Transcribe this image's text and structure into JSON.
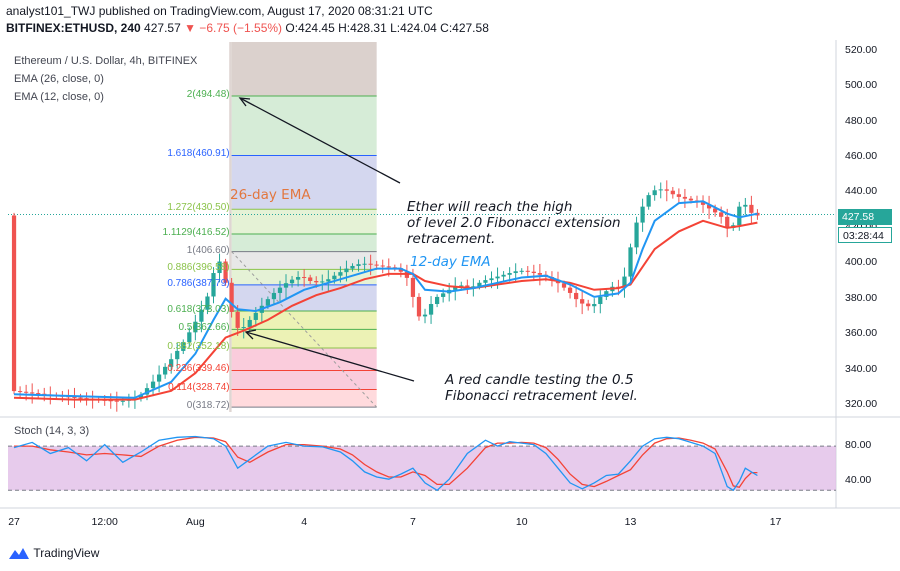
{
  "header": {
    "line1": "analyst101_TWJ published on TradingView.com, August 17, 2020 08:31:21 UTC",
    "symbol": "BITFINEX:ETHUSD, 240",
    "last": "427.57",
    "change": "▼ −6.75 (−1.55%)",
    "ohlc": "O:424.45 H:428.31 L:424.04 C:427.58"
  },
  "legend": {
    "title": "Ethereum / U.S. Dollar, 4h, BITFINEX",
    "ema26": "EMA (26, close, 0)",
    "ema12": "EMA (12, close, 0)",
    "stoch": "Stoch (14, 3, 3)"
  },
  "annotations": {
    "ema26_label": "26-day EMA",
    "ema12_label": "12-day EMA",
    "top_note": [
      "Ether will reach the high",
      "of level 2.0 Fibonacci extension",
      "retracement."
    ],
    "bottom_note": [
      "A red candle testing the 0.5",
      "Fibonacci retracement level."
    ]
  },
  "price_tags": {
    "last_price": "427.58",
    "countdown": "03:28:44"
  },
  "colors": {
    "up": "#26a69a",
    "down": "#ef5350",
    "ema12": "#2196f3",
    "ema26": "#f44336",
    "stoch_k": "#2196f3",
    "stoch_d": "#f44336",
    "stoch_band": "#e1bee7"
  },
  "footer": {
    "brand": "TradingView"
  },
  "chart_data": {
    "type": "candlestick",
    "y_ticks": [
      "520.00",
      "500.00",
      "480.00",
      "460.00",
      "440.00",
      "420.00",
      "400.00",
      "380.00",
      "360.00",
      "340.00",
      "320.00"
    ],
    "ylim": [
      316,
      525
    ],
    "x_ticks": [
      {
        "label": "27",
        "x": 0
      },
      {
        "label": "12:00",
        "x": 15
      },
      {
        "label": "Aug",
        "x": 30
      },
      {
        "label": "4",
        "x": 48
      },
      {
        "label": "7",
        "x": 66
      },
      {
        "label": "10",
        "x": 84
      },
      {
        "label": "13",
        "x": 102
      },
      {
        "label": "17",
        "x": 126
      }
    ],
    "xlim": [
      -1,
      136
    ],
    "fib_levels": [
      {
        "label": "2(494.48)",
        "value": 494.48,
        "color": "#4caf50"
      },
      {
        "label": "1.618(460.91)",
        "value": 460.91,
        "color": "#2962ff"
      },
      {
        "label": "1.272(430.50)",
        "value": 430.5,
        "color": "#8bc34a"
      },
      {
        "label": "1.1129(416.52)",
        "value": 416.52,
        "color": "#4caf50"
      },
      {
        "label": "1(406.60)",
        "value": 406.6,
        "color": "#787b86"
      },
      {
        "label": "0.886(396.58)",
        "value": 396.58,
        "color": "#8bc34a"
      },
      {
        "label": "0.786(387.79)",
        "value": 387.79,
        "color": "#2962ff"
      },
      {
        "label": "0.618(373.03)",
        "value": 373.03,
        "color": "#4caf50"
      },
      {
        "label": "0.5(362.66)",
        "value": 362.66,
        "color": "#4caf50"
      },
      {
        "label": "0.382(352.18)",
        "value": 352.18,
        "color": "#8bc34a"
      },
      {
        "label": "0.236(339.46)",
        "value": 339.46,
        "color": "#f44336"
      },
      {
        "label": "0.114(328.74)",
        "value": 328.74,
        "color": "#f44336"
      },
      {
        "label": "0(318.72)",
        "value": 318.72,
        "color": "#787b86"
      }
    ],
    "fib_x_range": [
      36,
      60
    ],
    "last_price": 427.58,
    "price_path": [
      [
        0,
        328
      ],
      [
        8,
        325
      ],
      [
        14,
        323
      ],
      [
        18,
        322
      ],
      [
        21,
        324
      ],
      [
        24,
        335
      ],
      [
        27,
        348
      ],
      [
        29,
        358
      ],
      [
        31,
        370
      ],
      [
        33,
        385
      ],
      [
        34,
        404
      ],
      [
        35,
        398
      ],
      [
        36,
        380
      ],
      [
        37,
        365
      ],
      [
        38,
        362
      ],
      [
        40,
        370
      ],
      [
        42,
        378
      ],
      [
        44,
        385
      ],
      [
        46,
        390
      ],
      [
        48,
        393
      ],
      [
        50,
        389
      ],
      [
        52,
        390
      ],
      [
        54,
        394
      ],
      [
        56,
        398
      ],
      [
        58,
        400
      ],
      [
        60,
        399
      ],
      [
        62,
        398
      ],
      [
        64,
        397
      ],
      [
        66,
        390
      ],
      [
        67,
        372
      ],
      [
        68,
        368
      ],
      [
        70,
        380
      ],
      [
        72,
        384
      ],
      [
        74,
        388
      ],
      [
        76,
        386
      ],
      [
        78,
        390
      ],
      [
        80,
        392
      ],
      [
        82,
        394
      ],
      [
        84,
        396
      ],
      [
        86,
        395
      ],
      [
        88,
        393
      ],
      [
        90,
        390
      ],
      [
        92,
        385
      ],
      [
        94,
        378
      ],
      [
        96,
        375
      ],
      [
        98,
        383
      ],
      [
        100,
        388
      ],
      [
        101,
        385
      ],
      [
        102,
        400
      ],
      [
        103,
        418
      ],
      [
        104,
        428
      ],
      [
        105,
        436
      ],
      [
        106,
        441
      ],
      [
        108,
        442
      ],
      [
        110,
        438
      ],
      [
        112,
        436
      ],
      [
        114,
        434
      ],
      [
        116,
        430
      ],
      [
        118,
        425
      ],
      [
        119,
        415
      ],
      [
        120,
        428
      ],
      [
        121,
        436
      ],
      [
        122,
        430
      ],
      [
        123,
        427
      ]
    ],
    "ema12": [
      [
        0,
        326
      ],
      [
        10,
        325
      ],
      [
        20,
        324
      ],
      [
        26,
        333
      ],
      [
        30,
        349
      ],
      [
        33,
        368
      ],
      [
        35,
        380
      ],
      [
        37,
        374
      ],
      [
        40,
        373
      ],
      [
        44,
        378
      ],
      [
        48,
        385
      ],
      [
        52,
        389
      ],
      [
        56,
        393
      ],
      [
        60,
        397
      ],
      [
        64,
        397
      ],
      [
        66,
        394
      ],
      [
        68,
        385
      ],
      [
        72,
        384
      ],
      [
        76,
        386
      ],
      [
        80,
        389
      ],
      [
        84,
        392
      ],
      [
        88,
        393
      ],
      [
        92,
        388
      ],
      [
        96,
        381
      ],
      [
        100,
        383
      ],
      [
        102,
        389
      ],
      [
        104,
        408
      ],
      [
        106,
        424
      ],
      [
        110,
        434
      ],
      [
        114,
        435
      ],
      [
        118,
        428
      ],
      [
        120,
        426
      ],
      [
        123,
        428
      ]
    ],
    "ema26": [
      [
        0,
        324
      ],
      [
        10,
        323
      ],
      [
        20,
        323
      ],
      [
        26,
        328
      ],
      [
        30,
        338
      ],
      [
        33,
        350
      ],
      [
        35,
        358
      ],
      [
        38,
        362
      ],
      [
        42,
        368
      ],
      [
        46,
        376
      ],
      [
        50,
        382
      ],
      [
        54,
        386
      ],
      [
        58,
        391
      ],
      [
        62,
        394
      ],
      [
        66,
        394
      ],
      [
        68,
        390
      ],
      [
        72,
        387
      ],
      [
        76,
        386
      ],
      [
        80,
        388
      ],
      [
        84,
        390
      ],
      [
        88,
        391
      ],
      [
        92,
        389
      ],
      [
        96,
        385
      ],
      [
        100,
        386
      ],
      [
        102,
        388
      ],
      [
        104,
        398
      ],
      [
        106,
        408
      ],
      [
        110,
        418
      ],
      [
        114,
        424
      ],
      [
        118,
        420
      ],
      [
        120,
        421
      ],
      [
        123,
        423
      ]
    ],
    "stoch": {
      "levels": [
        80,
        20
      ],
      "y_ticks": [
        "80.00",
        "40.00"
      ],
      "k": [
        [
          0,
          78
        ],
        [
          3,
          85
        ],
        [
          6,
          70
        ],
        [
          9,
          78
        ],
        [
          12,
          60
        ],
        [
          15,
          82
        ],
        [
          18,
          58
        ],
        [
          21,
          72
        ],
        [
          24,
          88
        ],
        [
          27,
          92
        ],
        [
          30,
          93
        ],
        [
          33,
          90
        ],
        [
          35,
          80
        ],
        [
          37,
          50
        ],
        [
          39,
          62
        ],
        [
          42,
          80
        ],
        [
          45,
          85
        ],
        [
          48,
          80
        ],
        [
          51,
          79
        ],
        [
          54,
          72
        ],
        [
          56,
          60
        ],
        [
          58,
          45
        ],
        [
          60,
          38
        ],
        [
          62,
          35
        ],
        [
          64,
          42
        ],
        [
          66,
          50
        ],
        [
          68,
          30
        ],
        [
          70,
          20
        ],
        [
          72,
          35
        ],
        [
          75,
          70
        ],
        [
          78,
          88
        ],
        [
          80,
          80
        ],
        [
          82,
          86
        ],
        [
          84,
          84
        ],
        [
          86,
          82
        ],
        [
          88,
          70
        ],
        [
          90,
          50
        ],
        [
          92,
          30
        ],
        [
          94,
          22
        ],
        [
          96,
          30
        ],
        [
          98,
          40
        ],
        [
          100,
          42
        ],
        [
          102,
          60
        ],
        [
          104,
          80
        ],
        [
          106,
          90
        ],
        [
          108,
          92
        ],
        [
          110,
          90
        ],
        [
          112,
          85
        ],
        [
          114,
          80
        ],
        [
          116,
          70
        ],
        [
          118,
          25
        ],
        [
          119,
          20
        ],
        [
          120,
          32
        ],
        [
          121,
          50
        ],
        [
          122,
          45
        ],
        [
          123,
          40
        ]
      ],
      "d": [
        [
          0,
          80
        ],
        [
          3,
          80
        ],
        [
          6,
          75
        ],
        [
          9,
          72
        ],
        [
          12,
          68
        ],
        [
          15,
          70
        ],
        [
          18,
          68
        ],
        [
          21,
          66
        ],
        [
          24,
          80
        ],
        [
          27,
          88
        ],
        [
          30,
          92
        ],
        [
          33,
          91
        ],
        [
          35,
          86
        ],
        [
          37,
          65
        ],
        [
          39,
          58
        ],
        [
          42,
          72
        ],
        [
          45,
          82
        ],
        [
          48,
          82
        ],
        [
          51,
          80
        ],
        [
          54,
          76
        ],
        [
          56,
          68
        ],
        [
          58,
          55
        ],
        [
          60,
          45
        ],
        [
          62,
          38
        ],
        [
          64,
          38
        ],
        [
          66,
          45
        ],
        [
          68,
          40
        ],
        [
          70,
          28
        ],
        [
          72,
          28
        ],
        [
          75,
          50
        ],
        [
          78,
          78
        ],
        [
          80,
          84
        ],
        [
          82,
          84
        ],
        [
          84,
          85
        ],
        [
          86,
          84
        ],
        [
          88,
          78
        ],
        [
          90,
          62
        ],
        [
          92,
          42
        ],
        [
          94,
          28
        ],
        [
          96,
          25
        ],
        [
          98,
          32
        ],
        [
          100,
          40
        ],
        [
          102,
          48
        ],
        [
          104,
          68
        ],
        [
          106,
          84
        ],
        [
          108,
          90
        ],
        [
          110,
          91
        ],
        [
          112,
          88
        ],
        [
          114,
          84
        ],
        [
          116,
          76
        ],
        [
          118,
          45
        ],
        [
          119,
          26
        ],
        [
          120,
          24
        ],
        [
          121,
          36
        ],
        [
          122,
          44
        ],
        [
          123,
          44
        ]
      ]
    }
  }
}
